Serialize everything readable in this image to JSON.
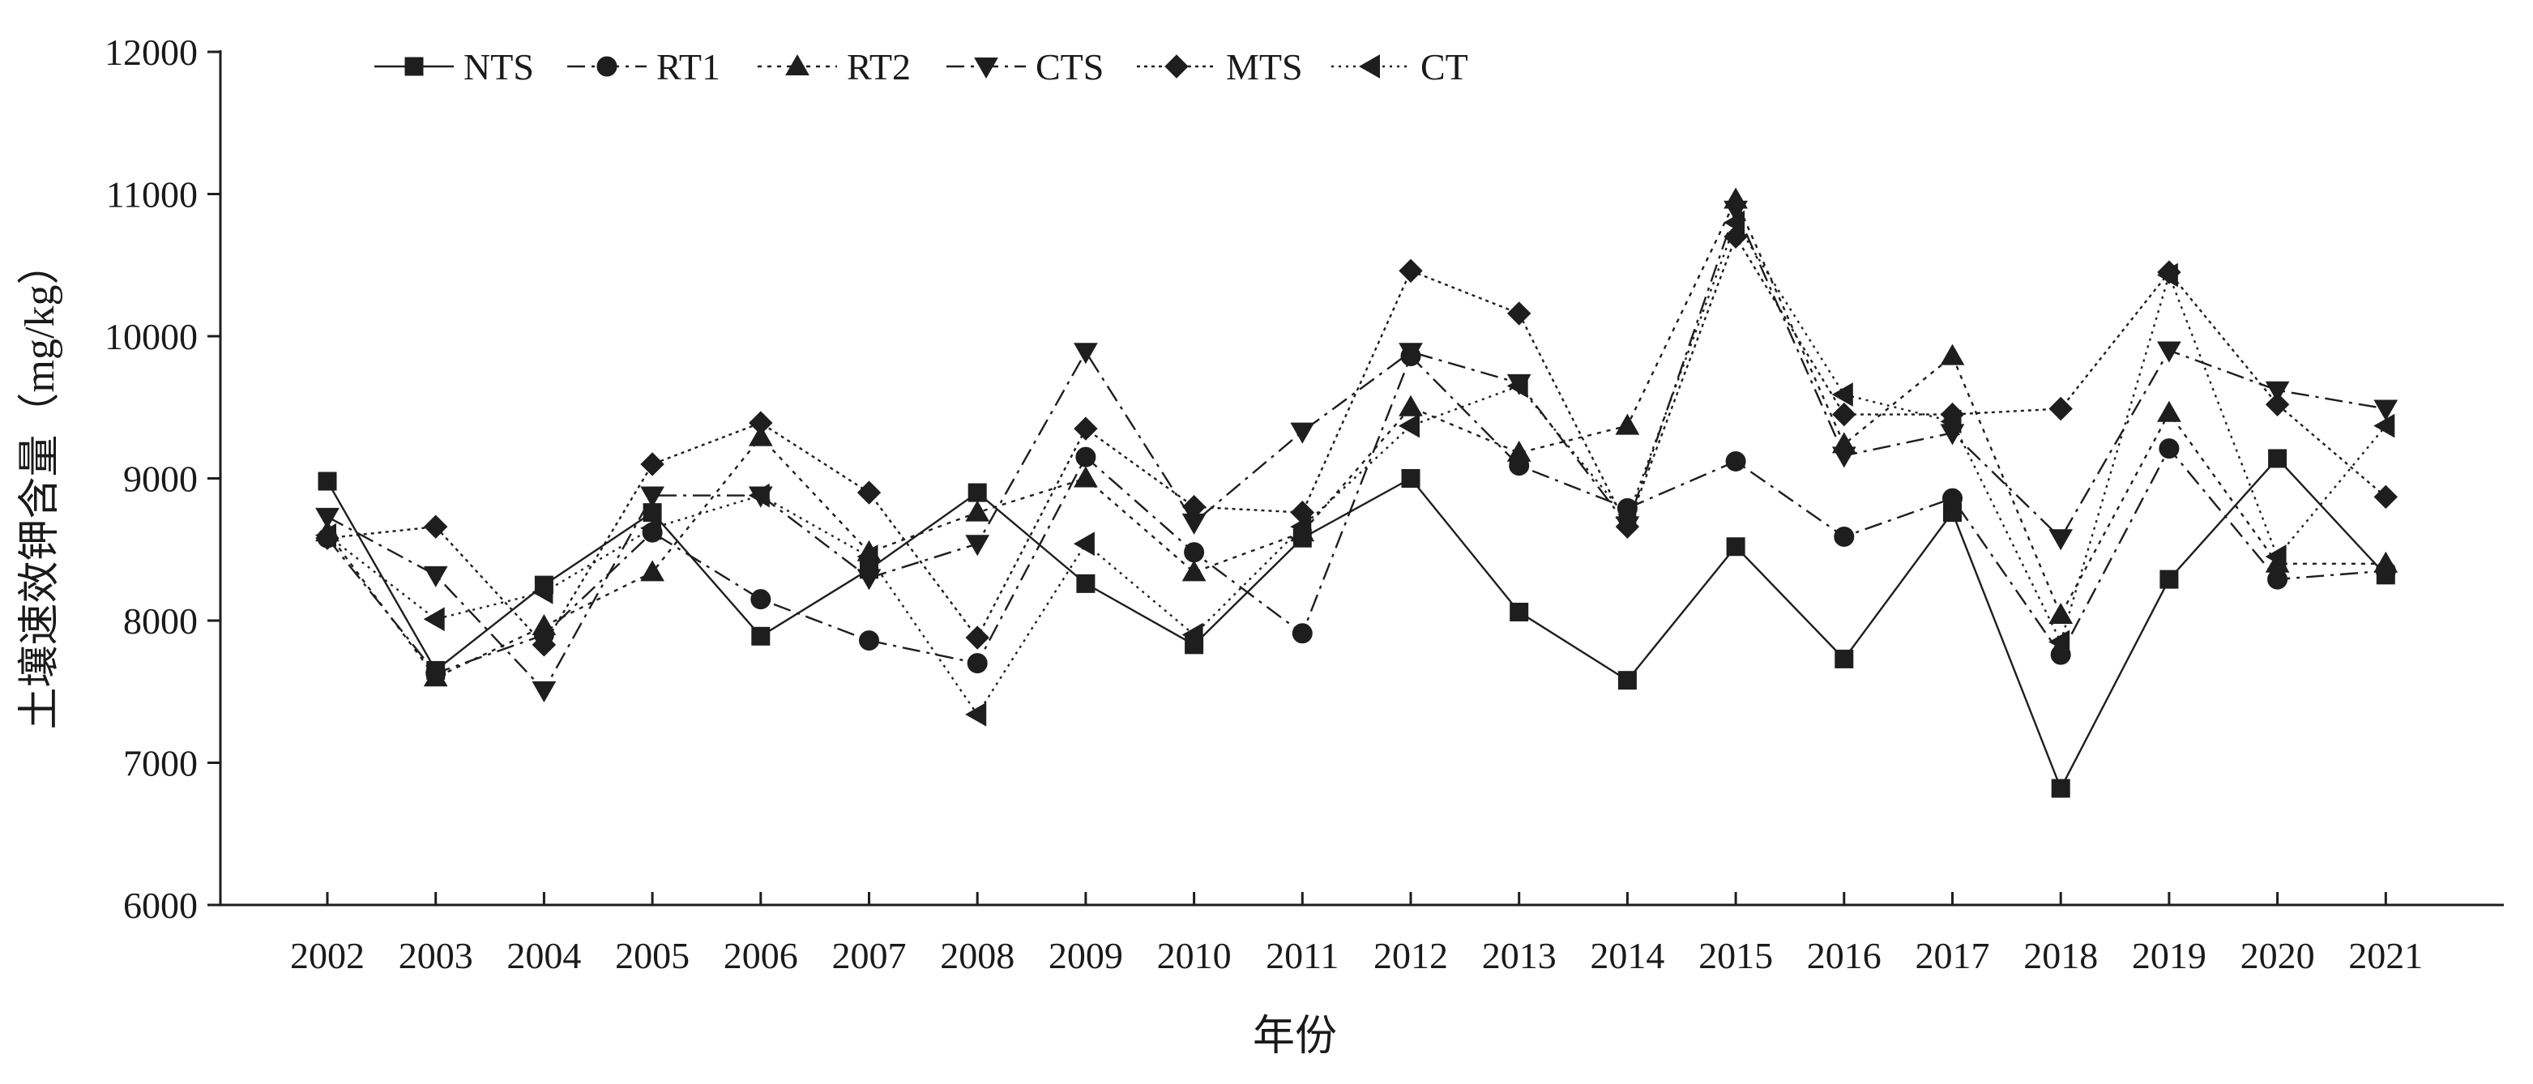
{
  "chart_data": {
    "type": "line",
    "xlabel": "年份",
    "ylabel": "土壤速效钾含量（mg/kg）",
    "categories": [
      "2002",
      "2003",
      "2004",
      "2005",
      "2006",
      "2007",
      "2008",
      "2009",
      "2010",
      "2011",
      "2012",
      "2013",
      "2014",
      "2015",
      "2016",
      "2017",
      "2018",
      "2019",
      "2020",
      "2021"
    ],
    "ylim": [
      6000,
      12000
    ],
    "yticks": [
      6000,
      7000,
      8000,
      9000,
      10000,
      11000,
      12000
    ],
    "grid": false,
    "legend_position": "top-left",
    "series": [
      {
        "name": "NTS",
        "marker": "square",
        "dash": "solid",
        "values": [
          8980,
          7650,
          8250,
          8760,
          7890,
          8360,
          8900,
          8260,
          7830,
          8580,
          9000,
          8060,
          7580,
          8520,
          7730,
          8760,
          6820,
          8290,
          9140,
          8320
        ]
      },
      {
        "name": "RT1",
        "marker": "circle",
        "dash": "dashdot",
        "values": [
          8580,
          7630,
          7900,
          8620,
          8150,
          7860,
          7700,
          9150,
          8480,
          7910,
          9860,
          9090,
          8790,
          9120,
          8590,
          8860,
          7760,
          9210,
          8290,
          8350
        ]
      },
      {
        "name": "RT2",
        "marker": "triangle-up",
        "dash": "dotted",
        "values": [
          8620,
          7600,
          7960,
          8340,
          9290,
          8480,
          8760,
          9000,
          8340,
          8620,
          9500,
          9180,
          9370,
          10960,
          9240,
          9860,
          8040,
          9460,
          8400,
          8400
        ]
      },
      {
        "name": "CTS",
        "marker": "triangle-down",
        "dash": "dashdot",
        "values": [
          8730,
          8320,
          7510,
          8880,
          8880,
          8300,
          8540,
          9890,
          8690,
          9330,
          9890,
          9670,
          8670,
          10890,
          9160,
          9320,
          8580,
          9900,
          9620,
          9490
        ]
      },
      {
        "name": "MTS",
        "marker": "diamond",
        "dash": "densedot",
        "values": [
          8580,
          8660,
          7830,
          9100,
          9390,
          8900,
          7880,
          9350,
          8800,
          8760,
          10460,
          10160,
          8660,
          10700,
          9450,
          9450,
          9490,
          10450,
          9520,
          8870
        ]
      },
      {
        "name": "CT",
        "marker": "triangle-left",
        "dash": "finedot",
        "values": [
          8600,
          8010,
          8200,
          8650,
          8880,
          8450,
          7340,
          8540,
          7900,
          8660,
          9370,
          9650,
          8720,
          10800,
          9590,
          9400,
          7850,
          10430,
          8450,
          9370
        ]
      }
    ]
  }
}
